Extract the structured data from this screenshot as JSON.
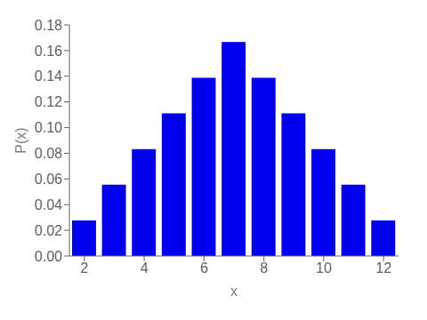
{
  "chart_data": {
    "type": "bar",
    "x": [
      2,
      3,
      4,
      5,
      6,
      7,
      8,
      9,
      10,
      11,
      12
    ],
    "values": [
      0.027778,
      0.055556,
      0.083333,
      0.111111,
      0.138889,
      0.166667,
      0.138889,
      0.111111,
      0.083333,
      0.055556,
      0.027778
    ],
    "color": "#0000ee",
    "xlabel": "x",
    "ylabel": "P(x)",
    "xlim": [
      1.5,
      12.5
    ],
    "ylim": [
      0,
      0.18
    ],
    "xticks": [
      2,
      4,
      6,
      8,
      10,
      12
    ],
    "yticks": [
      {
        "value": 0,
        "label": "0.00"
      },
      {
        "value": 0.02,
        "label": "0.02"
      },
      {
        "value": 0.04,
        "label": "0.04"
      },
      {
        "value": 0.06,
        "label": "0.06"
      },
      {
        "value": 0.08,
        "label": "0.08"
      },
      {
        "value": 0.1,
        "label": "0.10"
      },
      {
        "value": 0.12,
        "label": "0.12"
      },
      {
        "value": 0.14,
        "label": "0.14"
      },
      {
        "value": 0.16,
        "label": "0.16"
      },
      {
        "value": 0.18,
        "label": "0.18"
      }
    ],
    "grid": false
  }
}
